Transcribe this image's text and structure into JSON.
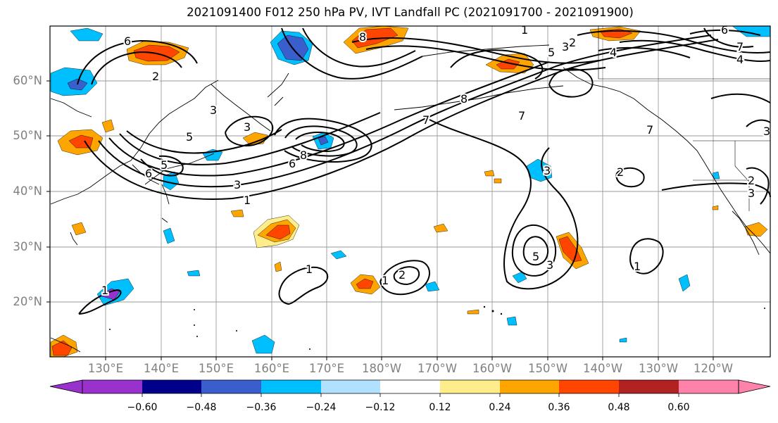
{
  "title": "2021091400 F012 250 hPa PV, IVT Landfall PC (2021091700 - 2021091900)",
  "lat_labels": [
    "60°N",
    "50°N",
    "40°N",
    "30°N",
    "20°N"
  ],
  "lon_labels": [
    "130°E",
    "140°E",
    "150°E",
    "160°E",
    "170°E",
    "180°W",
    "170°W",
    "160°W",
    "150°W",
    "140°W",
    "130°W",
    "120°W"
  ],
  "colorbar": {
    "colors": [
      "#9932cc",
      "#00008b",
      "#3a5fcd",
      "#00bfff",
      "#b0e2ff",
      "#ffffff",
      "#ffec8b",
      "#ffa500",
      "#ff4500",
      "#b22222",
      "#ff82ab"
    ],
    "tick_labels": [
      "−0.60",
      "−0.48",
      "−0.36",
      "−0.24",
      "−0.12",
      "0.12",
      "0.24",
      "0.36",
      "0.48",
      "0.60"
    ],
    "extend": "both"
  },
  "contour_labels": [
    "1",
    "2",
    "3",
    "4",
    "5",
    "6",
    "7",
    "8"
  ]
}
